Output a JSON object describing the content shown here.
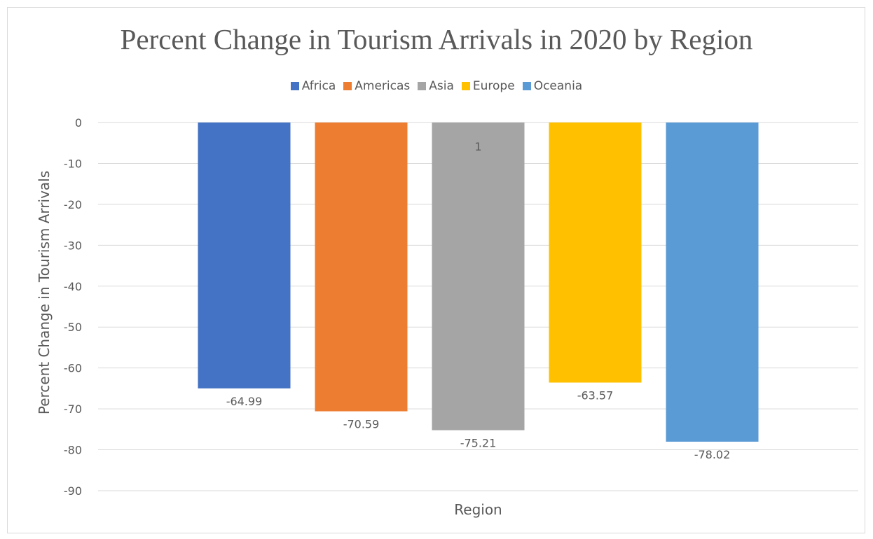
{
  "chart_data": {
    "type": "bar",
    "title": "Percent Change in Tourism Arrivals in 2020 by Region",
    "xlabel": "Region",
    "ylabel": "Percent Change in Tourism Arrivals",
    "ylim": [
      -90,
      0
    ],
    "yticks": [
      0,
      -10,
      -20,
      -30,
      -40,
      -50,
      -60,
      -70,
      -80,
      -90
    ],
    "categories": [
      "1"
    ],
    "grid": true,
    "legend_position": "top",
    "series": [
      {
        "name": "Africa",
        "color": "#4472C4",
        "values": [
          -64.99
        ],
        "labels": [
          "-64.99"
        ]
      },
      {
        "name": "Americas",
        "color": "#ED7D31",
        "values": [
          -70.59
        ],
        "labels": [
          "-70.59"
        ]
      },
      {
        "name": "Asia",
        "color": "#A5A5A5",
        "values": [
          -75.21
        ],
        "labels": [
          "-75.21"
        ]
      },
      {
        "name": "Europe",
        "color": "#FFC000",
        "values": [
          -63.57
        ],
        "labels": [
          "-63.57"
        ]
      },
      {
        "name": "Oceania",
        "color": "#5B9BD5",
        "values": [
          -78.02
        ],
        "labels": [
          "-78.02"
        ]
      }
    ]
  }
}
